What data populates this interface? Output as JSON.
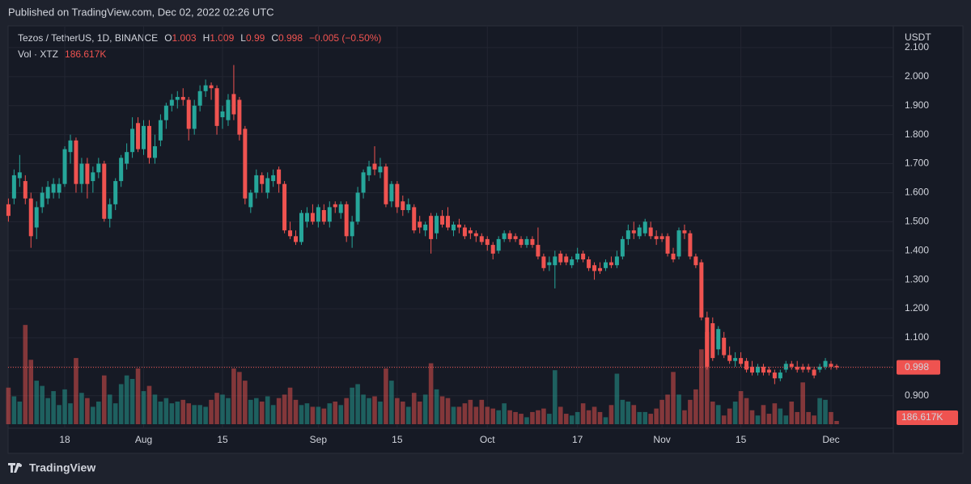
{
  "header": {
    "published": "Published on TradingView.com, Dec 02, 2022 02:26 UTC"
  },
  "footer": {
    "brand": "TradingView"
  },
  "chart_data": {
    "type": "candlestick",
    "symbol": "Tezos / TetherUS, 1D, BINANCE",
    "legend_open": "O",
    "legend_high": "H",
    "legend_low": "L",
    "legend_close": "C",
    "change_label": "−0.005 (−0.50%)",
    "volume_title": "Vol · XTZ",
    "volume_last_label": "186.617K",
    "currency": "USDT",
    "up_color": "#26a69a",
    "down_color": "#ef5350",
    "grid": true,
    "ylim": [
      0.788,
      2.175
    ],
    "yticks": [
      {
        "value": 0.9,
        "label": "0.900"
      },
      {
        "value": 1.0,
        "label": "1.000"
      },
      {
        "value": 1.1,
        "label": "1.100"
      },
      {
        "value": 1.2,
        "label": "1.200"
      },
      {
        "value": 1.3,
        "label": "1.300"
      },
      {
        "value": 1.4,
        "label": "1.400"
      },
      {
        "value": 1.5,
        "label": "1.500"
      },
      {
        "value": 1.6,
        "label": "1.600"
      },
      {
        "value": 1.7,
        "label": "1.700"
      },
      {
        "value": 1.8,
        "label": "1.800"
      },
      {
        "value": 1.9,
        "label": "1.900"
      },
      {
        "value": 2.0,
        "label": "2.000"
      },
      {
        "value": 2.1,
        "label": "2.100"
      }
    ],
    "xticks": [
      {
        "value": 10,
        "label": "18"
      },
      {
        "value": 24,
        "label": "Aug"
      },
      {
        "value": 38,
        "label": "15"
      },
      {
        "value": 55,
        "label": "Sep"
      },
      {
        "value": 69,
        "label": "15"
      },
      {
        "value": 85,
        "label": "Oct"
      },
      {
        "value": 101,
        "label": "17"
      },
      {
        "value": 116,
        "label": "Nov"
      },
      {
        "value": 130,
        "label": "15"
      },
      {
        "value": 146,
        "label": "Dec"
      }
    ],
    "candles": [
      [
        1.56,
        1.58,
        1.5,
        1.52
      ],
      [
        1.58,
        1.68,
        1.56,
        1.66
      ],
      [
        1.65,
        1.73,
        1.62,
        1.67
      ],
      [
        1.64,
        1.66,
        1.56,
        1.58
      ],
      [
        1.58,
        1.6,
        1.41,
        1.45
      ],
      [
        1.48,
        1.57,
        1.44,
        1.55
      ],
      [
        1.55,
        1.62,
        1.53,
        1.6
      ],
      [
        1.58,
        1.64,
        1.56,
        1.62
      ],
      [
        1.6,
        1.65,
        1.58,
        1.63
      ],
      [
        1.6,
        1.65,
        1.58,
        1.63
      ],
      [
        1.63,
        1.76,
        1.62,
        1.75
      ],
      [
        1.74,
        1.8,
        1.7,
        1.78
      ],
      [
        1.78,
        1.79,
        1.6,
        1.63
      ],
      [
        1.63,
        1.72,
        1.6,
        1.7
      ],
      [
        1.7,
        1.72,
        1.58,
        1.63
      ],
      [
        1.64,
        1.69,
        1.6,
        1.67
      ],
      [
        1.67,
        1.72,
        1.65,
        1.7
      ],
      [
        1.7,
        1.71,
        1.5,
        1.51
      ],
      [
        1.51,
        1.58,
        1.48,
        1.56
      ],
      [
        1.56,
        1.65,
        1.54,
        1.64
      ],
      [
        1.64,
        1.73,
        1.62,
        1.72
      ],
      [
        1.7,
        1.77,
        1.68,
        1.74
      ],
      [
        1.74,
        1.86,
        1.72,
        1.82
      ],
      [
        1.84,
        1.86,
        1.74,
        1.75
      ],
      [
        1.75,
        1.85,
        1.73,
        1.83
      ],
      [
        1.83,
        1.85,
        1.7,
        1.72
      ],
      [
        1.72,
        1.8,
        1.7,
        1.76
      ],
      [
        1.78,
        1.87,
        1.76,
        1.85
      ],
      [
        1.85,
        1.91,
        1.82,
        1.9
      ],
      [
        1.9,
        1.94,
        1.88,
        1.92
      ],
      [
        1.92,
        1.95,
        1.89,
        1.93
      ],
      [
        1.93,
        1.96,
        1.9,
        1.92
      ],
      [
        1.92,
        1.93,
        1.78,
        1.82
      ],
      [
        1.82,
        1.92,
        1.8,
        1.9
      ],
      [
        1.9,
        1.97,
        1.88,
        1.95
      ],
      [
        1.95,
        1.99,
        1.93,
        1.97
      ],
      [
        1.97,
        1.98,
        1.92,
        1.96
      ],
      [
        1.96,
        1.97,
        1.8,
        1.83
      ],
      [
        1.86,
        1.9,
        1.82,
        1.88
      ],
      [
        1.85,
        1.94,
        1.83,
        1.92
      ],
      [
        1.94,
        2.04,
        1.85,
        1.87
      ],
      [
        1.92,
        1.93,
        1.78,
        1.8
      ],
      [
        1.82,
        1.83,
        1.56,
        1.58
      ],
      [
        1.55,
        1.61,
        1.53,
        1.6
      ],
      [
        1.6,
        1.68,
        1.58,
        1.66
      ],
      [
        1.66,
        1.67,
        1.6,
        1.63
      ],
      [
        1.6,
        1.67,
        1.58,
        1.65
      ],
      [
        1.64,
        1.68,
        1.62,
        1.66
      ],
      [
        1.68,
        1.69,
        1.6,
        1.63
      ],
      [
        1.63,
        1.64,
        1.46,
        1.47
      ],
      [
        1.47,
        1.5,
        1.44,
        1.45
      ],
      [
        1.45,
        1.47,
        1.42,
        1.43
      ],
      [
        1.43,
        1.54,
        1.42,
        1.53
      ],
      [
        1.5,
        1.55,
        1.48,
        1.53
      ],
      [
        1.53,
        1.56,
        1.49,
        1.5
      ],
      [
        1.5,
        1.56,
        1.48,
        1.55
      ],
      [
        1.54,
        1.56,
        1.49,
        1.5
      ],
      [
        1.5,
        1.57,
        1.48,
        1.55
      ],
      [
        1.56,
        1.57,
        1.53,
        1.55
      ],
      [
        1.53,
        1.57,
        1.51,
        1.56
      ],
      [
        1.56,
        1.57,
        1.43,
        1.45
      ],
      [
        1.45,
        1.52,
        1.41,
        1.5
      ],
      [
        1.5,
        1.62,
        1.49,
        1.6
      ],
      [
        1.6,
        1.68,
        1.58,
        1.67
      ],
      [
        1.66,
        1.71,
        1.64,
        1.69
      ],
      [
        1.7,
        1.76,
        1.66,
        1.68
      ],
      [
        1.67,
        1.72,
        1.65,
        1.69
      ],
      [
        1.69,
        1.7,
        1.55,
        1.56
      ],
      [
        1.57,
        1.64,
        1.55,
        1.63
      ],
      [
        1.63,
        1.64,
        1.53,
        1.55
      ],
      [
        1.57,
        1.59,
        1.52,
        1.54
      ],
      [
        1.54,
        1.58,
        1.53,
        1.56
      ],
      [
        1.55,
        1.56,
        1.46,
        1.47
      ],
      [
        1.5,
        1.52,
        1.46,
        1.48
      ],
      [
        1.47,
        1.5,
        1.45,
        1.49
      ],
      [
        1.52,
        1.53,
        1.39,
        1.44
      ],
      [
        1.46,
        1.53,
        1.44,
        1.52
      ],
      [
        1.52,
        1.54,
        1.48,
        1.49
      ],
      [
        1.52,
        1.55,
        1.47,
        1.48
      ],
      [
        1.47,
        1.5,
        1.45,
        1.49
      ],
      [
        1.49,
        1.51,
        1.46,
        1.48
      ],
      [
        1.48,
        1.49,
        1.44,
        1.45
      ],
      [
        1.47,
        1.48,
        1.44,
        1.46
      ],
      [
        1.46,
        1.47,
        1.43,
        1.45
      ],
      [
        1.45,
        1.46,
        1.42,
        1.43
      ],
      [
        1.44,
        1.45,
        1.4,
        1.42
      ],
      [
        1.42,
        1.43,
        1.37,
        1.39
      ],
      [
        1.4,
        1.45,
        1.39,
        1.44
      ],
      [
        1.44,
        1.47,
        1.43,
        1.46
      ],
      [
        1.46,
        1.47,
        1.43,
        1.44
      ],
      [
        1.45,
        1.46,
        1.43,
        1.44
      ],
      [
        1.44,
        1.45,
        1.41,
        1.42
      ],
      [
        1.42,
        1.45,
        1.41,
        1.44
      ],
      [
        1.44,
        1.45,
        1.41,
        1.42
      ],
      [
        1.42,
        1.48,
        1.37,
        1.38
      ],
      [
        1.38,
        1.39,
        1.33,
        1.34
      ],
      [
        1.35,
        1.38,
        1.33,
        1.36
      ],
      [
        1.35,
        1.4,
        1.27,
        1.38
      ],
      [
        1.39,
        1.4,
        1.35,
        1.36
      ],
      [
        1.38,
        1.39,
        1.35,
        1.36
      ],
      [
        1.35,
        1.38,
        1.34,
        1.37
      ],
      [
        1.37,
        1.41,
        1.36,
        1.39
      ],
      [
        1.39,
        1.4,
        1.36,
        1.37
      ],
      [
        1.37,
        1.38,
        1.33,
        1.34
      ],
      [
        1.35,
        1.36,
        1.3,
        1.33
      ],
      [
        1.34,
        1.36,
        1.32,
        1.33
      ],
      [
        1.34,
        1.37,
        1.33,
        1.36
      ],
      [
        1.36,
        1.38,
        1.34,
        1.35
      ],
      [
        1.35,
        1.4,
        1.34,
        1.38
      ],
      [
        1.38,
        1.45,
        1.37,
        1.44
      ],
      [
        1.44,
        1.49,
        1.42,
        1.47
      ],
      [
        1.47,
        1.5,
        1.44,
        1.46
      ],
      [
        1.45,
        1.49,
        1.44,
        1.48
      ],
      [
        1.46,
        1.51,
        1.45,
        1.5
      ],
      [
        1.48,
        1.5,
        1.44,
        1.45
      ],
      [
        1.45,
        1.47,
        1.42,
        1.44
      ],
      [
        1.45,
        1.46,
        1.43,
        1.44
      ],
      [
        1.45,
        1.46,
        1.38,
        1.39
      ],
      [
        1.39,
        1.41,
        1.36,
        1.37
      ],
      [
        1.38,
        1.48,
        1.37,
        1.47
      ],
      [
        1.47,
        1.49,
        1.44,
        1.46
      ],
      [
        1.46,
        1.47,
        1.37,
        1.38
      ],
      [
        1.38,
        1.39,
        1.34,
        1.35
      ],
      [
        1.36,
        1.37,
        1.16,
        1.17
      ],
      [
        1.17,
        1.19,
        0.99,
        1.0
      ],
      [
        1.15,
        1.17,
        1.02,
        1.03
      ],
      [
        1.06,
        1.14,
        1.04,
        1.13
      ],
      [
        1.1,
        1.12,
        1.03,
        1.04
      ],
      [
        1.04,
        1.07,
        1.01,
        1.02
      ],
      [
        1.02,
        1.05,
        1.0,
        1.03
      ],
      [
        1.03,
        1.05,
        1.0,
        1.01
      ],
      [
        1.02,
        1.03,
        0.98,
        0.99
      ],
      [
        1.0,
        1.02,
        0.97,
        0.98
      ],
      [
        0.98,
        1.01,
        0.97,
        1.0
      ],
      [
        1.0,
        1.01,
        0.97,
        0.98
      ],
      [
        0.99,
        1.0,
        0.97,
        0.98
      ],
      [
        0.98,
        0.99,
        0.94,
        0.96
      ],
      [
        0.96,
        0.99,
        0.95,
        0.98
      ],
      [
        0.99,
        1.02,
        0.98,
        1.01
      ],
      [
        1.01,
        1.02,
        0.99,
        1.0
      ],
      [
        1.0,
        1.02,
        0.98,
        0.99
      ],
      [
        1.0,
        1.01,
        0.98,
        0.99
      ],
      [
        1.0,
        1.01,
        0.98,
        0.99
      ],
      [
        0.99,
        1.0,
        0.96,
        0.97
      ],
      [
        0.99,
        1.01,
        0.98,
        1.0
      ],
      [
        1.0,
        1.03,
        0.99,
        1.02
      ],
      [
        1.01,
        1.02,
        0.99,
        1.0
      ],
      [
        1.003,
        1.009,
        0.99,
        0.998
      ]
    ],
    "volume": [
      2100,
      1600,
      1300,
      5700,
      3700,
      2500,
      2200,
      1500,
      1900,
      1100,
      2000,
      1200,
      3800,
      1800,
      1500,
      1000,
      1300,
      2800,
      1700,
      1200,
      2300,
      2800,
      2600,
      3200,
      1900,
      2200,
      1700,
      1300,
      1500,
      1200,
      1300,
      1400,
      1200,
      1100,
      1100,
      1000,
      1400,
      1800,
      1700,
      1500,
      3200,
      3000,
      2500,
      1400,
      1500,
      1300,
      1600,
      1100,
      1500,
      1700,
      2100,
      1400,
      1100,
      1200,
      1000,
      1000,
      900,
      1200,
      1300,
      1100,
      1500,
      2100,
      2300,
      1700,
      1500,
      1600,
      1300,
      3200,
      2500,
      1500,
      1300,
      1000,
      1800,
      1300,
      1700,
      3500,
      2000,
      1600,
      1500,
      1000,
      1000,
      1200,
      1400,
      1000,
      1400,
      1000,
      900,
      800,
      1200,
      800,
      700,
      600,
      400,
      700,
      800,
      900,
      600,
      3100,
      1000,
      600,
      500,
      700,
      1200,
      800,
      1000,
      700,
      400,
      1100,
      2900,
      1400,
      1300,
      1100,
      700,
      700,
      600,
      900,
      1400,
      1700,
      3000,
      1700,
      800,
      1400,
      2000,
      4300,
      5300,
      1300,
      1100,
      500,
      900,
      1300,
      1900,
      1500,
      800,
      500,
      1100,
      600,
      1200,
      900,
      500,
      1300,
      700,
      2400,
      700,
      500,
      1500,
      1400,
      700,
      186.617
    ]
  }
}
